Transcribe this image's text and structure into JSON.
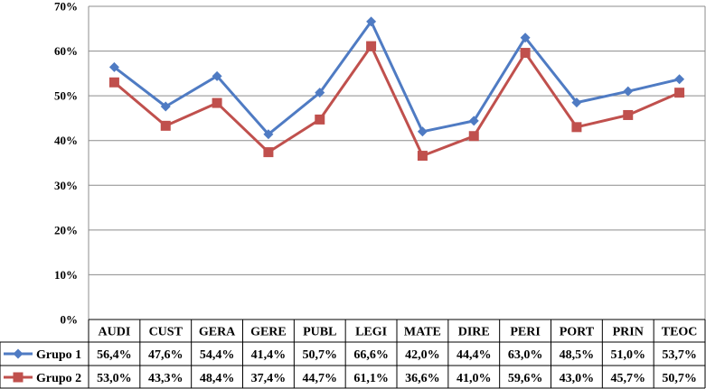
{
  "chart_data": {
    "type": "line",
    "title": "",
    "xlabel": "",
    "ylabel": "",
    "ylim": [
      0,
      70
    ],
    "y_ticks": [
      "0%",
      "10%",
      "20%",
      "30%",
      "40%",
      "50%",
      "60%",
      "70%"
    ],
    "grid": true,
    "legend": "data-table-left",
    "categories": [
      "AUDI",
      "CUST",
      "GERA",
      "GERE",
      "PUBL",
      "LEGI",
      "MATE",
      "DIRE",
      "PERI",
      "PORT",
      "PRIN",
      "TEOC"
    ],
    "series": [
      {
        "name": "Grupo 1",
        "color": "#4F7BC3",
        "marker": "diamond",
        "values": [
          56.4,
          47.6,
          54.4,
          41.4,
          50.7,
          66.6,
          42.0,
          44.4,
          63.0,
          48.5,
          51.0,
          53.7
        ],
        "labels": [
          "56,4%",
          "47,6%",
          "54,4%",
          "41,4%",
          "50,7%",
          "66,6%",
          "42,0%",
          "44,4%",
          "63,0%",
          "48,5%",
          "51,0%",
          "53,7%"
        ]
      },
      {
        "name": "Grupo 2",
        "color": "#C0504D",
        "marker": "square",
        "values": [
          53.0,
          43.3,
          48.4,
          37.4,
          44.7,
          61.1,
          36.6,
          41.0,
          59.6,
          43.0,
          45.7,
          50.7
        ],
        "labels": [
          "53,0%",
          "43,3%",
          "48,4%",
          "37,4%",
          "44,7%",
          "61,1%",
          "36,6%",
          "41,0%",
          "59,6%",
          "43,0%",
          "45,7%",
          "50,7%"
        ]
      }
    ]
  }
}
